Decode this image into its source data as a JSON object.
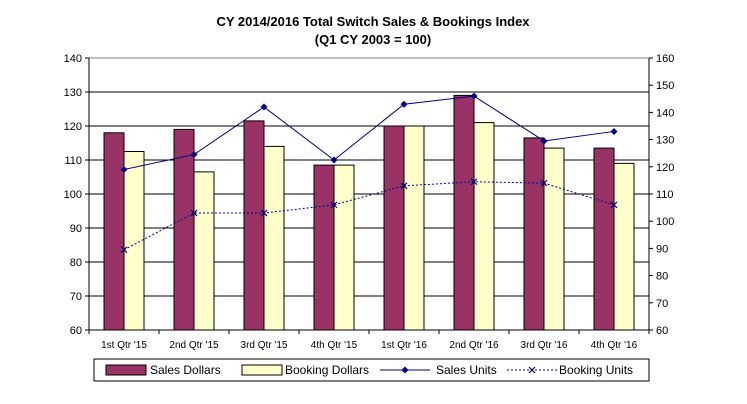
{
  "chart_data": {
    "type": "bar",
    "title": "CY 2014/2016  Total Switch Sales & Bookings Index",
    "subtitle": "(Q1 CY 2003 = 100)",
    "categories": [
      "1st Qtr '15",
      "2nd Qtr '15",
      "3rd Qtr '15",
      "4th Qtr '15",
      "1st Qtr '16",
      "2nd Qtr '16",
      "3rd Qtr '16",
      "4th Qtr '16"
    ],
    "ylim_left": [
      60,
      140
    ],
    "yticks_left": [
      60,
      70,
      80,
      90,
      100,
      110,
      120,
      130,
      140
    ],
    "ylim_right": [
      60,
      160
    ],
    "yticks_right": [
      60,
      70,
      80,
      90,
      100,
      110,
      120,
      130,
      140,
      150,
      160
    ],
    "grid": true,
    "legend_position": "bottom",
    "series": [
      {
        "name": "Sales Dollars",
        "kind": "bar",
        "axis": "left",
        "color": "#993366",
        "values": [
          118,
          119,
          121.5,
          108.5,
          120,
          129,
          116.5,
          113.5
        ]
      },
      {
        "name": "Booking Dollars",
        "kind": "bar",
        "axis": "left",
        "color": "#FFFFCC",
        "values": [
          112.5,
          106.5,
          114,
          108.5,
          120,
          121,
          113.5,
          109
        ]
      },
      {
        "name": "Sales Units",
        "kind": "line",
        "axis": "right",
        "color": "#000080",
        "marker": "diamond",
        "values": [
          119,
          124.5,
          142,
          122.5,
          143,
          146,
          129.5,
          133
        ]
      },
      {
        "name": "Booking Units",
        "kind": "line",
        "axis": "right",
        "color": "#000080",
        "marker": "x",
        "dashed": true,
        "values": [
          89.5,
          103,
          103,
          106,
          113,
          114.5,
          114,
          106
        ]
      }
    ]
  }
}
